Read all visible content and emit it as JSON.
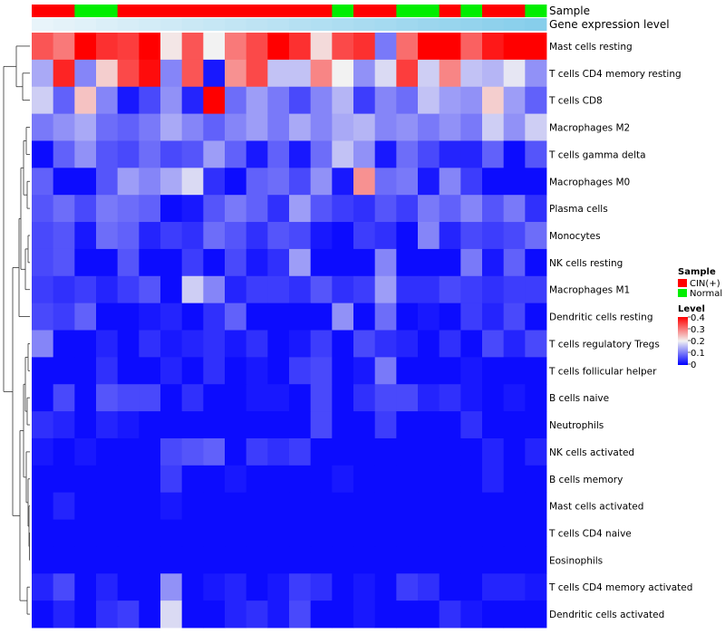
{
  "chart_data": {
    "type": "heatmap",
    "title": "",
    "annotations": {
      "sample_label": "Sample",
      "expression_label": "Gene expression level",
      "sample_groups": [
        "CIN(+)",
        "CIN(+)",
        "Normal",
        "Normal",
        "CIN(+)",
        "CIN(+)",
        "CIN(+)",
        "CIN(+)",
        "CIN(+)",
        "CIN(+)",
        "CIN(+)",
        "CIN(+)",
        "CIN(+)",
        "CIN(+)",
        "Normal",
        "CIN(+)",
        "CIN(+)",
        "Normal",
        "Normal",
        "CIN(+)",
        "Normal",
        "CIN(+)",
        "CIN(+)",
        "Normal"
      ],
      "expression_values": [
        0.02,
        0.04,
        0.06,
        0.08,
        0.1,
        0.12,
        0.14,
        0.16,
        0.18,
        0.2,
        0.22,
        0.24,
        0.26,
        0.28,
        0.3,
        0.32,
        0.34,
        0.36,
        0.38,
        0.4,
        0.42,
        0.44,
        0.46,
        0.48
      ]
    },
    "rows": [
      "Mast cells resting",
      "T cells CD4 memory resting",
      "T cells CD8",
      "Macrophages M2",
      "T cells gamma delta",
      "Macrophages M0",
      "Plasma cells",
      "Monocytes",
      "NK cells resting",
      "Macrophages M1",
      "Dendritic cells resting",
      "T cells regulatory  Tregs",
      "T cells follicular helper",
      "B cells naive",
      "Neutrophils",
      "NK cells activated",
      "B cells memory",
      "Mast cells activated",
      "T cells CD4 naive",
      "Eosinophils",
      "T cells CD4 memory activated",
      "Dendritic cells activated"
    ],
    "values": [
      [
        0.33,
        0.3,
        0.4,
        0.36,
        0.35,
        0.4,
        0.21,
        0.33,
        0.2,
        0.3,
        0.34,
        0.4,
        0.36,
        0.22,
        0.34,
        0.36,
        0.1,
        0.31,
        0.4,
        0.4,
        0.32,
        0.38,
        0.4,
        0.4
      ],
      [
        0.14,
        0.37,
        0.11,
        0.23,
        0.34,
        0.39,
        0.11,
        0.33,
        0.02,
        0.28,
        0.34,
        0.16,
        0.16,
        0.29,
        0.2,
        0.12,
        0.18,
        0.35,
        0.17,
        0.29,
        0.16,
        0.15,
        0.19,
        0.12
      ],
      [
        0.17,
        0.08,
        0.24,
        0.11,
        0.02,
        0.06,
        0.12,
        0.03,
        0.4,
        0.09,
        0.13,
        0.1,
        0.06,
        0.11,
        0.15,
        0.05,
        0.11,
        0.09,
        0.16,
        0.13,
        0.12,
        0.23,
        0.13,
        0.08
      ],
      [
        0.1,
        0.12,
        0.14,
        0.09,
        0.08,
        0.1,
        0.14,
        0.11,
        0.08,
        0.11,
        0.13,
        0.1,
        0.14,
        0.11,
        0.14,
        0.15,
        0.11,
        0.12,
        0.1,
        0.12,
        0.1,
        0.17,
        0.12,
        0.17
      ],
      [
        0.01,
        0.08,
        0.12,
        0.07,
        0.06,
        0.09,
        0.06,
        0.07,
        0.13,
        0.08,
        0.02,
        0.08,
        0.02,
        0.09,
        0.16,
        0.12,
        0.02,
        0.09,
        0.06,
        0.03,
        0.03,
        0.08,
        0.01,
        0.07
      ],
      [
        0.08,
        0.01,
        0.01,
        0.07,
        0.13,
        0.11,
        0.14,
        0.18,
        0.04,
        0.01,
        0.08,
        0.09,
        0.06,
        0.12,
        0.02,
        0.28,
        0.09,
        0.1,
        0.02,
        0.11,
        0.05,
        0.01,
        0.01,
        0.01
      ],
      [
        0.07,
        0.09,
        0.06,
        0.1,
        0.09,
        0.08,
        0.01,
        0.02,
        0.07,
        0.1,
        0.08,
        0.04,
        0.13,
        0.07,
        0.05,
        0.04,
        0.07,
        0.05,
        0.1,
        0.08,
        0.11,
        0.07,
        0.1,
        0.04
      ],
      [
        0.06,
        0.07,
        0.02,
        0.09,
        0.08,
        0.03,
        0.05,
        0.04,
        0.09,
        0.07,
        0.04,
        0.07,
        0.06,
        0.02,
        0.01,
        0.05,
        0.04,
        0.01,
        0.11,
        0.03,
        0.06,
        0.05,
        0.06,
        0.09
      ],
      [
        0.06,
        0.07,
        0.01,
        0.01,
        0.07,
        0.01,
        0.01,
        0.05,
        0.01,
        0.06,
        0.02,
        0.04,
        0.13,
        0.01,
        0.01,
        0.01,
        0.11,
        0.01,
        0.01,
        0.01,
        0.1,
        0.02,
        0.08,
        0.01
      ],
      [
        0.05,
        0.04,
        0.05,
        0.03,
        0.05,
        0.07,
        0.01,
        0.17,
        0.11,
        0.03,
        0.05,
        0.05,
        0.04,
        0.07,
        0.04,
        0.05,
        0.13,
        0.04,
        0.04,
        0.06,
        0.05,
        0.04,
        0.05,
        0.05
      ],
      [
        0.06,
        0.05,
        0.08,
        0.01,
        0.01,
        0.02,
        0.03,
        0.01,
        0.04,
        0.08,
        0.01,
        0.01,
        0.01,
        0.01,
        0.12,
        0.01,
        0.09,
        0.01,
        0.02,
        0.01,
        0.05,
        0.03,
        0.06,
        0.01
      ],
      [
        0.11,
        0.01,
        0.01,
        0.03,
        0.01,
        0.04,
        0.02,
        0.03,
        0.04,
        0.02,
        0.04,
        0.01,
        0.02,
        0.05,
        0.01,
        0.06,
        0.04,
        0.03,
        0.01,
        0.04,
        0.01,
        0.06,
        0.03,
        0.06
      ],
      [
        0.01,
        0.01,
        0.01,
        0.04,
        0.01,
        0.01,
        0.03,
        0.01,
        0.04,
        0.01,
        0.02,
        0.01,
        0.05,
        0.06,
        0.01,
        0.02,
        0.1,
        0.01,
        0.01,
        0.01,
        0.02,
        0.01,
        0.01,
        0.01
      ],
      [
        0.01,
        0.06,
        0.01,
        0.07,
        0.06,
        0.06,
        0.01,
        0.04,
        0.01,
        0.01,
        0.02,
        0.02,
        0.01,
        0.06,
        0.01,
        0.04,
        0.06,
        0.06,
        0.03,
        0.04,
        0.02,
        0.01,
        0.02,
        0.01
      ],
      [
        0.04,
        0.03,
        0.01,
        0.03,
        0.02,
        0.01,
        0.01,
        0.01,
        0.01,
        0.01,
        0.01,
        0.01,
        0.01,
        0.06,
        0.01,
        0.01,
        0.05,
        0.01,
        0.01,
        0.01,
        0.04,
        0.01,
        0.01,
        0.01
      ],
      [
        0.02,
        0.01,
        0.02,
        0.01,
        0.01,
        0.01,
        0.06,
        0.07,
        0.08,
        0.01,
        0.05,
        0.04,
        0.05,
        0.01,
        0.01,
        0.01,
        0.01,
        0.01,
        0.01,
        0.01,
        0.01,
        0.03,
        0.01,
        0.03
      ],
      [
        0.01,
        0.01,
        0.01,
        0.01,
        0.01,
        0.01,
        0.05,
        0.01,
        0.01,
        0.02,
        0.01,
        0.01,
        0.01,
        0.01,
        0.02,
        0.01,
        0.01,
        0.01,
        0.01,
        0.01,
        0.01,
        0.03,
        0.01,
        0.01
      ],
      [
        0.01,
        0.03,
        0.01,
        0.01,
        0.01,
        0.01,
        0.02,
        0.01,
        0.01,
        0.01,
        0.01,
        0.01,
        0.01,
        0.01,
        0.01,
        0.01,
        0.01,
        0.01,
        0.01,
        0.01,
        0.01,
        0.01,
        0.01,
        0.01
      ],
      [
        0.01,
        0.01,
        0.01,
        0.01,
        0.01,
        0.01,
        0.01,
        0.01,
        0.01,
        0.01,
        0.01,
        0.01,
        0.01,
        0.01,
        0.01,
        0.01,
        0.01,
        0.01,
        0.01,
        0.01,
        0.01,
        0.01,
        0.01,
        0.01
      ],
      [
        0.01,
        0.01,
        0.01,
        0.01,
        0.01,
        0.01,
        0.01,
        0.01,
        0.01,
        0.01,
        0.01,
        0.01,
        0.01,
        0.01,
        0.01,
        0.01,
        0.01,
        0.01,
        0.01,
        0.01,
        0.01,
        0.01,
        0.01,
        0.01
      ],
      [
        0.03,
        0.06,
        0.01,
        0.03,
        0.01,
        0.01,
        0.12,
        0.01,
        0.02,
        0.03,
        0.01,
        0.02,
        0.05,
        0.04,
        0.01,
        0.02,
        0.01,
        0.05,
        0.04,
        0.01,
        0.01,
        0.03,
        0.03,
        0.02
      ],
      [
        0.01,
        0.03,
        0.01,
        0.04,
        0.05,
        0.01,
        0.18,
        0.01,
        0.01,
        0.03,
        0.04,
        0.02,
        0.06,
        0.01,
        0.01,
        0.02,
        0.01,
        0.01,
        0.01,
        0.04,
        0.02,
        0.01,
        0.01,
        0.01
      ]
    ],
    "legend": {
      "sample_title": "Sample",
      "sample_entries": [
        {
          "label": "CIN(+)",
          "color": "#ff0000"
        },
        {
          "label": "Normal",
          "color": "#00ee00"
        }
      ],
      "level_title": "Level",
      "level_ticks": [
        "0.4",
        "0.3",
        "0.2",
        "0.1",
        "0"
      ],
      "level_range": [
        0,
        0.4
      ]
    },
    "colors": {
      "low": "#0000ff",
      "mid": "#f2f2f2",
      "high": "#ff0000",
      "expr_low": "#e8f4fa",
      "expr_high": "#87ceeb"
    },
    "dendrogram": true
  }
}
